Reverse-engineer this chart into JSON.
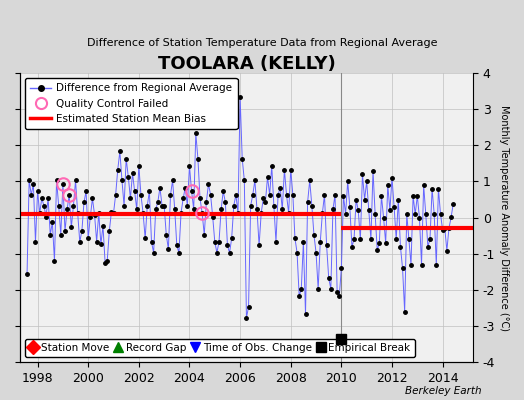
{
  "title": "TOOLARA (KELLY)",
  "subtitle": "Difference of Station Temperature Data from Regional Average",
  "ylabel": "Monthly Temperature Anomaly Difference (°C)",
  "xlim": [
    1997.3,
    2015.2
  ],
  "ylim": [
    -4,
    4
  ],
  "yticks": [
    -4,
    -3,
    -2,
    -1,
    0,
    1,
    2,
    3,
    4
  ],
  "xticks": [
    1998,
    2000,
    2002,
    2004,
    2006,
    2008,
    2010,
    2012,
    2014
  ],
  "background_color": "#d8d8d8",
  "plot_bg_color": "#f0f0f0",
  "grid_color": "#c0c0c0",
  "line_color": "#6666ff",
  "marker_color": "black",
  "bias_line_color": "red",
  "bias_seg1_y": 0.1,
  "bias_seg2_y": -0.3,
  "break_x": 2010.0,
  "break_marker_y": -3.35,
  "empirical_break_x": 2010.0,
  "berkeley_earth_text": "Berkeley Earth",
  "seed": 42
}
